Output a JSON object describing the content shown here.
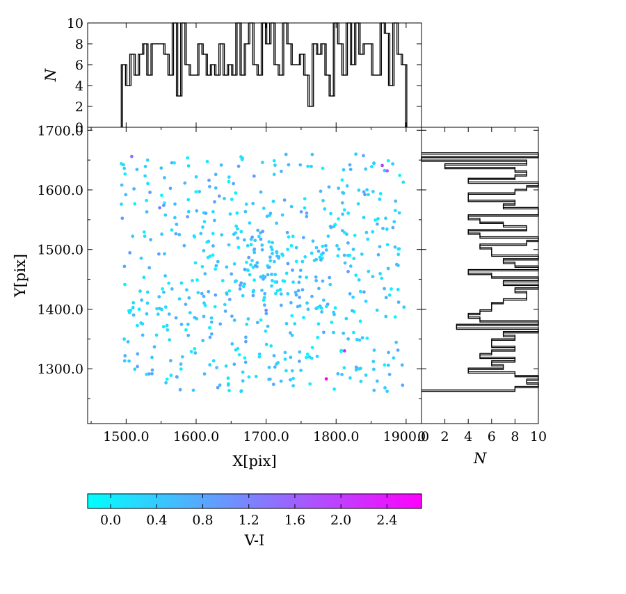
{
  "chart_data": [
    {
      "type": "scatter",
      "role": "main",
      "xlabel": "X[pix]",
      "ylabel": "Y[pix]",
      "xlim": [
        1445,
        1922
      ],
      "ylim": [
        1208,
        1705
      ],
      "xticks": [
        1500,
        1600,
        1700,
        1800,
        1900
      ],
      "xtick_labels": [
        "1500.0",
        "1600.0",
        "1700.0",
        "1800.0",
        "1900.0"
      ],
      "yticks": [
        1300,
        1400,
        1500,
        1600,
        1700
      ],
      "ytick_labels": [
        "1300.0",
        "1400.0",
        "1500.0",
        "1600.0",
        "1700.0"
      ],
      "x_range": [
        1493,
        1897
      ],
      "y_range": [
        1262,
        1660
      ],
      "n_points": 610,
      "color_by": "V-I",
      "cluster_center": [
        1690,
        1460
      ],
      "highlighted_points": [
        {
          "x": 1786,
          "y": 1283,
          "v_i": 2.7
        },
        {
          "x": 1812,
          "y": 1330,
          "v_i": 2.2
        },
        {
          "x": 1866,
          "y": 1641,
          "v_i": 1.9
        },
        {
          "x": 1873,
          "y": 1632,
          "v_i": 1.6
        },
        {
          "x": 1508,
          "y": 1656,
          "v_i": 1.3
        },
        {
          "x": 1548,
          "y": 1570,
          "v_i": 1.3
        },
        {
          "x": 1700,
          "y": 1398,
          "v_i": 1.2
        }
      ]
    },
    {
      "type": "histogram",
      "role": "top-marginal",
      "orientation": "vertical",
      "ylabel": "N",
      "ylim": [
        0,
        10
      ],
      "yticks": [
        0,
        2,
        4,
        6,
        8,
        10
      ],
      "bin_edges": [
        1493,
        1899
      ],
      "counts": [
        6,
        4,
        7,
        5,
        7,
        8,
        5,
        8,
        8,
        8,
        7,
        5,
        10,
        3,
        10,
        6,
        5,
        5,
        8,
        7,
        5,
        6,
        5,
        8,
        5,
        6,
        5,
        10,
        5,
        8,
        10,
        6,
        5,
        10,
        8,
        10,
        6,
        5,
        10,
        8,
        6,
        6,
        7,
        5,
        2,
        8,
        7,
        8,
        5,
        3,
        10,
        8,
        5,
        10,
        6,
        10,
        7,
        8,
        8,
        5,
        5,
        10,
        9,
        4,
        10,
        7,
        6
      ],
      "style": "step"
    },
    {
      "type": "histogram",
      "role": "right-marginal",
      "orientation": "horizontal",
      "xlabel": "N",
      "xlim": [
        0,
        10
      ],
      "xticks": [
        0,
        2,
        4,
        6,
        8,
        10
      ],
      "xtick_labels": [
        "0",
        "2",
        "4",
        "6",
        "8",
        "10"
      ],
      "bin_edges": [
        1262,
        1660
      ],
      "counts": [
        8,
        10,
        9,
        10,
        8,
        4,
        7,
        6,
        8,
        5,
        6,
        8,
        6,
        6,
        8,
        7,
        10,
        3,
        10,
        5,
        4,
        5,
        6,
        6,
        7,
        9,
        9,
        8,
        10,
        7,
        10,
        6,
        4,
        10,
        8,
        7,
        10,
        6,
        6,
        5,
        9,
        10,
        5,
        4,
        9,
        7,
        5,
        4,
        10,
        10,
        7,
        8,
        4,
        4,
        8,
        9,
        10,
        4,
        8,
        9,
        8,
        2,
        9,
        0,
        10
      ],
      "style": "step"
    },
    {
      "type": "colorbar",
      "label": "V-I",
      "range": [
        -0.2,
        2.7
      ],
      "ticks": [
        0.0,
        0.4,
        0.8,
        1.2,
        1.6,
        2.0,
        2.4
      ],
      "tick_labels": [
        "0.0",
        "0.4",
        "0.8",
        "1.2",
        "1.6",
        "2.0",
        "2.4"
      ],
      "colormap": "cool",
      "colors": [
        "#00ffff",
        "#ff00ff"
      ]
    }
  ]
}
